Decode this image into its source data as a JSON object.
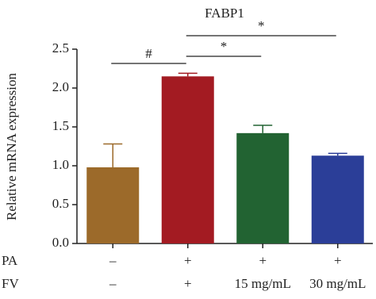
{
  "chart_data": {
    "type": "bar",
    "title": "FABP1",
    "y_label": "Relative mRNA expression",
    "categories": [
      null,
      null,
      null,
      null
    ],
    "values": [
      0.98,
      2.15,
      1.42,
      1.13
    ],
    "errors": [
      0.3,
      0.04,
      0.1,
      0.03
    ],
    "colors": [
      "#9c6a2a",
      "#a31b22",
      "#226332",
      "#2b3e98"
    ],
    "ylim": [
      0,
      2.5
    ],
    "yticks": [
      {
        "value": 0,
        "label": "0.0"
      },
      {
        "value": 0.5,
        "label": "0.5"
      },
      {
        "value": 1,
        "label": "1.0"
      },
      {
        "value": 1.5,
        "label": "1.5"
      },
      {
        "value": 2,
        "label": "2.0"
      },
      {
        "value": 2.5,
        "label": "2.5"
      }
    ],
    "annotations": [
      {
        "from": 0,
        "to": 1,
        "label": "#"
      },
      {
        "from": 1,
        "to": 2,
        "label": "*"
      },
      {
        "from": 1,
        "to": 3,
        "label": "*"
      }
    ],
    "conditions": [
      {
        "label": "PA",
        "values": [
          "–",
          "+",
          "+",
          "+"
        ]
      },
      {
        "label": "FV",
        "values": [
          "–",
          "+",
          "15 mg/mL",
          "30 mg/mL"
        ]
      }
    ]
  }
}
